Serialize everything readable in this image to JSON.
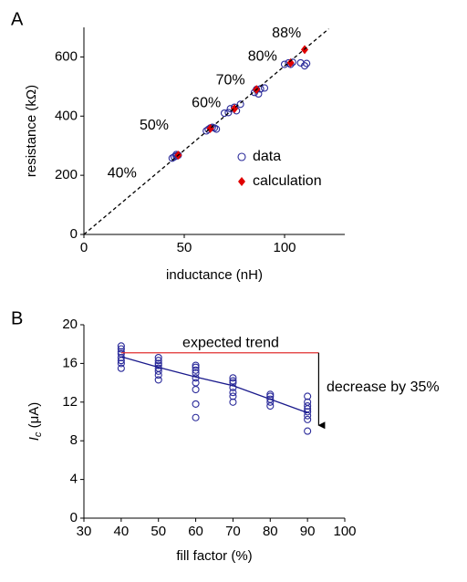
{
  "chart_data": [
    {
      "type": "scatter",
      "panel_label": "A",
      "xlabel": "inductance (nH)",
      "ylabel": "resistance (kΩ)",
      "xlim": [
        0,
        130
      ],
      "ylim": [
        0,
        700
      ],
      "xticks": [
        0,
        50,
        100
      ],
      "yticks": [
        0,
        200,
        400,
        600
      ],
      "legend": "lower right",
      "series": [
        {
          "name": "data",
          "type": "scatter",
          "marker": "circle",
          "color": "#2b2b9a",
          "x": [
            44,
            45,
            46,
            47,
            46,
            61,
            62,
            63,
            64,
            65,
            66,
            70,
            72,
            73,
            75,
            76,
            78,
            85,
            86,
            87,
            88,
            90,
            100,
            102,
            103,
            104,
            108,
            110,
            111
          ],
          "y": [
            258,
            262,
            265,
            268,
            270,
            350,
            355,
            360,
            362,
            360,
            356,
            410,
            412,
            425,
            430,
            418,
            440,
            480,
            490,
            475,
            492,
            495,
            575,
            580,
            575,
            582,
            580,
            570,
            578
          ]
        },
        {
          "name": "calculation",
          "type": "scatter",
          "marker": "diamond",
          "color": "#e00000",
          "x": [
            47,
            63,
            75,
            86,
            103,
            110
          ],
          "y": [
            268,
            358,
            425,
            490,
            580,
            625
          ]
        },
        {
          "type": "line",
          "dash": true,
          "color": "#000000",
          "x": [
            0,
            122
          ],
          "y": [
            0,
            695
          ]
        }
      ],
      "annotations": [
        {
          "text": "40%",
          "x": 19,
          "y": 205
        },
        {
          "text": "50%",
          "x": 35,
          "y": 367
        },
        {
          "text": "60%",
          "x": 61,
          "y": 443
        },
        {
          "text": "70%",
          "x": 73,
          "y": 520
        },
        {
          "text": "80%",
          "x": 89,
          "y": 600
        },
        {
          "text": "88%",
          "x": 101,
          "y": 679
        }
      ]
    },
    {
      "type": "scatter",
      "panel_label": "B",
      "xlabel": "fill factor (%)",
      "ylabel": [
        "I",
        "c",
        " (μA)"
      ],
      "xlim": [
        30,
        100
      ],
      "ylim": [
        0,
        20
      ],
      "xticks": [
        30,
        40,
        50,
        60,
        70,
        80,
        90,
        100
      ],
      "yticks": [
        0,
        4,
        8,
        12,
        16,
        20
      ],
      "series": [
        {
          "type": "scatter",
          "marker": "circle",
          "color": "#2b2b9a",
          "x": [
            40,
            40,
            40,
            40,
            40,
            40,
            40,
            40,
            50,
            50,
            50,
            50,
            50,
            50,
            50,
            50,
            60,
            60,
            60,
            60,
            60,
            60,
            60,
            60,
            60,
            70,
            70,
            70,
            70,
            70,
            70,
            70,
            80,
            80,
            80,
            80,
            80,
            90,
            90,
            90,
            90,
            90,
            90,
            90,
            90
          ],
          "y": [
            15.5,
            16,
            16.3,
            16.6,
            17,
            17.2,
            17.5,
            17.8,
            14.3,
            14.8,
            15.2,
            15.5,
            15.8,
            16,
            16.3,
            16.6,
            10.4,
            11.8,
            13.3,
            14,
            14.5,
            15,
            15.3,
            15.6,
            15.8,
            12,
            12.6,
            13,
            13.5,
            14,
            14.2,
            14.5,
            11.6,
            12,
            12.3,
            12.6,
            12.8,
            9,
            10.2,
            10.6,
            11,
            11.3,
            11.6,
            12,
            12.6
          ]
        },
        {
          "type": "line",
          "color": "#1a1a8c",
          "x": [
            40,
            50,
            60,
            70,
            80,
            90
          ],
          "y": [
            16.7,
            15.6,
            14.6,
            13.7,
            12.3,
            10.9
          ]
        },
        {
          "type": "line",
          "color": "#e03030",
          "x": [
            40,
            93
          ],
          "y": [
            17.1,
            17.1
          ]
        },
        {
          "type": "arrow",
          "color": "#000000",
          "x": [
            93,
            93
          ],
          "y": [
            17.1,
            9.6
          ]
        }
      ],
      "annotations": [
        {
          "text": "expected trend",
          "x": 69.4,
          "y": 18.1,
          "color": "#e03030"
        },
        {
          "text": "decrease by 35%",
          "x": 95.1,
          "y": 13.5,
          "anchor": "start"
        }
      ]
    }
  ]
}
